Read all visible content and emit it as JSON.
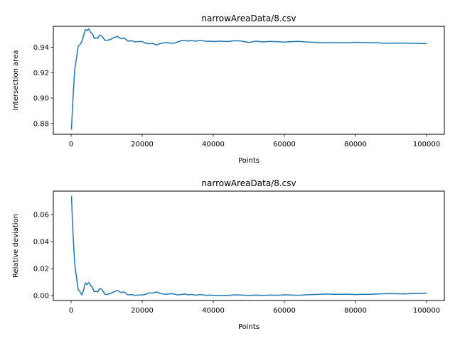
{
  "chart_data": [
    {
      "type": "line",
      "title": "narrowAreaData/8.csv",
      "xlabel": "Points",
      "ylabel": "Intersection area",
      "xlim": [
        -5000,
        105000
      ],
      "ylim": [
        0.8715,
        0.9565
      ],
      "xticks": [
        0,
        20000,
        40000,
        60000,
        80000,
        100000
      ],
      "yticks": [
        0.88,
        0.9,
        0.92,
        0.94
      ],
      "tick_labels_x": [
        "0",
        "20000",
        "40000",
        "60000",
        "80000",
        "100000"
      ],
      "tick_labels_y": [
        "0.88",
        "0.90",
        "0.92",
        "0.94"
      ],
      "color": "#1f77b4",
      "grid": false,
      "series": [
        {
          "x": [
            100,
            500,
            1000,
            1500,
            2000,
            2500,
            3000,
            3500,
            4000,
            4500,
            5000,
            5500,
            6000,
            6500,
            7000,
            7500,
            8000,
            8500,
            9000,
            9500,
            10000,
            11000,
            12000,
            13000,
            14000,
            15000,
            16000,
            17000,
            18000,
            19000,
            20000,
            21000,
            22000,
            23000,
            24000,
            25000,
            26000,
            27000,
            28000,
            29000,
            30000,
            31000,
            32000,
            33000,
            34000,
            35000,
            36000,
            37000,
            38000,
            39000,
            40000,
            42000,
            44000,
            46000,
            48000,
            50000,
            52000,
            54000,
            56000,
            58000,
            60000,
            62000,
            64000,
            66000,
            68000,
            70000,
            72000,
            74000,
            76000,
            78000,
            80000,
            82000,
            84000,
            86000,
            88000,
            90000,
            92000,
            94000,
            96000,
            98000,
            100000
          ],
          "y": [
            0.8755,
            0.898,
            0.922,
            0.931,
            0.941,
            0.942,
            0.9445,
            0.949,
            0.954,
            0.953,
            0.9545,
            0.9515,
            0.9505,
            0.947,
            0.9475,
            0.947,
            0.9495,
            0.949,
            0.9475,
            0.9455,
            0.9455,
            0.946,
            0.9475,
            0.9485,
            0.9468,
            0.9472,
            0.9448,
            0.9452,
            0.9442,
            0.9445,
            0.9445,
            0.9432,
            0.9428,
            0.943,
            0.9418,
            0.9428,
            0.9435,
            0.9436,
            0.9432,
            0.9432,
            0.9442,
            0.9452,
            0.9455,
            0.9448,
            0.9454,
            0.9447,
            0.9455,
            0.9452,
            0.9446,
            0.9448,
            0.9445,
            0.9448,
            0.9445,
            0.9452,
            0.9448,
            0.9438,
            0.9448,
            0.9442,
            0.9446,
            0.9444,
            0.9441,
            0.9444,
            0.9446,
            0.9442,
            0.9439,
            0.9437,
            0.9435,
            0.9437,
            0.9436,
            0.9436,
            0.9439,
            0.9437,
            0.9437,
            0.9435,
            0.9432,
            0.9432,
            0.9433,
            0.9433,
            0.9431,
            0.9431,
            0.9428
          ]
        }
      ]
    },
    {
      "type": "line",
      "title": "narrowAreaData/8.csv",
      "xlabel": "Points",
      "ylabel": "Relative deviation",
      "xlim": [
        -5000,
        105000
      ],
      "ylim": [
        -0.0036,
        0.0775
      ],
      "xticks": [
        0,
        20000,
        40000,
        60000,
        80000,
        100000
      ],
      "yticks": [
        0.0,
        0.02,
        0.04,
        0.06
      ],
      "tick_labels_x": [
        "0",
        "20000",
        "40000",
        "60000",
        "80000",
        "100000"
      ],
      "tick_labels_y": [
        "0.00",
        "0.02",
        "0.04",
        "0.06"
      ],
      "color": "#1f77b4",
      "grid": false,
      "series": [
        {
          "x": [
            100,
            500,
            1000,
            1500,
            2000,
            2500,
            3000,
            3500,
            4000,
            4500,
            5000,
            5500,
            6000,
            6500,
            7000,
            7500,
            8000,
            8500,
            9000,
            9500,
            10000,
            11000,
            12000,
            13000,
            14000,
            15000,
            16000,
            17000,
            18000,
            19000,
            20000,
            21000,
            22000,
            23000,
            24000,
            25000,
            26000,
            27000,
            28000,
            29000,
            30000,
            31000,
            32000,
            33000,
            34000,
            35000,
            36000,
            37000,
            38000,
            39000,
            40000,
            42000,
            44000,
            46000,
            48000,
            50000,
            52000,
            54000,
            56000,
            58000,
            60000,
            62000,
            64000,
            66000,
            68000,
            70000,
            72000,
            74000,
            76000,
            78000,
            80000,
            82000,
            84000,
            86000,
            88000,
            90000,
            92000,
            94000,
            96000,
            98000,
            100000
          ],
          "y": [
            0.0737,
            0.048,
            0.024,
            0.014,
            0.0045,
            0.003,
            0.0005,
            0.004,
            0.0095,
            0.0082,
            0.0098,
            0.0075,
            0.0062,
            0.003,
            0.0032,
            0.0028,
            0.0052,
            0.0048,
            0.0032,
            0.001,
            0.0008,
            0.0015,
            0.0028,
            0.0038,
            0.0024,
            0.0026,
            0.0005,
            0.0009,
            0.0002,
            0.0005,
            0.0005,
            0.001,
            0.0021,
            0.0019,
            0.0028,
            0.0016,
            0.0012,
            0.001,
            0.0014,
            0.0013,
            0.0005,
            0.0009,
            0.0012,
            0.0006,
            0.0009,
            0.0003,
            0.0008,
            0.0006,
            0.0002,
            0.0004,
            0.0002,
            0.0002,
            0.0001,
            0.0006,
            0.0004,
            0.0002,
            0.0004,
            0.0002,
            0.0004,
            0.0003,
            0.0006,
            0.0004,
            0.0003,
            0.0006,
            0.0008,
            0.001,
            0.0012,
            0.001,
            0.001,
            0.0011,
            0.0008,
            0.001,
            0.001,
            0.0012,
            0.0014,
            0.0015,
            0.0014,
            0.0013,
            0.0016,
            0.0016,
            0.0019
          ]
        }
      ]
    }
  ]
}
